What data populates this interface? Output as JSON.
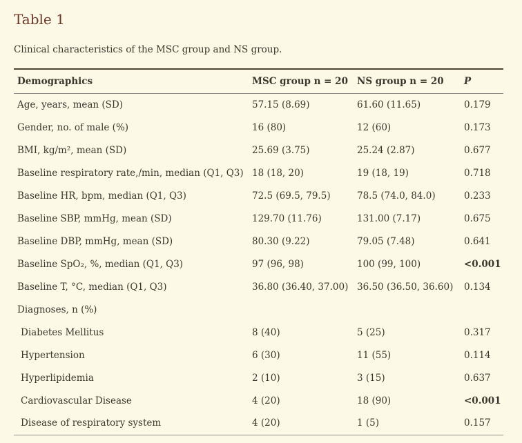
{
  "page": {
    "title": "Table 1",
    "caption": "Clinical characteristics of the MSC group and NS group."
  },
  "colors": {
    "background": "#fdf9e7",
    "title": "#713423",
    "text": "#3a372c",
    "rule_dark": "#4a4336",
    "rule_light": "#908e87"
  },
  "table": {
    "headers": [
      "Demographics",
      "MSC group n = 20",
      "NS group n = 20",
      "P"
    ],
    "rows": [
      {
        "label": "Age, years, mean (SD)",
        "msc": "57.15 (8.69)",
        "ns": "61.60 (11.65)",
        "p": "0.179",
        "bold_p": false,
        "indent": false
      },
      {
        "label": "Gender, no. of male (%)",
        "msc": "16 (80)",
        "ns": "12 (60)",
        "p": "0.173",
        "bold_p": false,
        "indent": false
      },
      {
        "label": "BMI, kg/m², mean (SD)",
        "msc": "25.69 (3.75)",
        "ns": "25.24 (2.87)",
        "p": "0.677",
        "bold_p": false,
        "indent": false
      },
      {
        "label": "Baseline respiratory rate,/min, median (Q1, Q3)",
        "msc": "18 (18, 20)",
        "ns": "19 (18, 19)",
        "p": "0.718",
        "bold_p": false,
        "indent": false
      },
      {
        "label": "Baseline HR, bpm, median (Q1, Q3)",
        "msc": "72.5 (69.5, 79.5)",
        "ns": "78.5 (74.0, 84.0)",
        "p": "0.233",
        "bold_p": false,
        "indent": false
      },
      {
        "label": "Baseline SBP, mmHg, mean (SD)",
        "msc": "129.70 (11.76)",
        "ns": "131.00 (7.17)",
        "p": "0.675",
        "bold_p": false,
        "indent": false
      },
      {
        "label": "Baseline DBP, mmHg, mean (SD)",
        "msc": "80.30 (9.22)",
        "ns": "79.05 (7.48)",
        "p": "0.641",
        "bold_p": false,
        "indent": false
      },
      {
        "label": "Baseline SpO₂, %, median (Q1, Q3)",
        "msc": "97 (96, 98)",
        "ns": "100 (99, 100)",
        "p": "<0.001",
        "bold_p": true,
        "indent": false
      },
      {
        "label": "Baseline T, °C, median (Q1, Q3)",
        "msc": "36.80 (36.40, 37.00)",
        "ns": "36.50 (36.50, 36.60)",
        "p": "0.134",
        "bold_p": false,
        "indent": false
      },
      {
        "label": "Diagnoses, n (%)",
        "msc": "",
        "ns": "",
        "p": "",
        "bold_p": false,
        "indent": false
      },
      {
        "label": "Diabetes Mellitus",
        "msc": "8 (40)",
        "ns": "5 (25)",
        "p": "0.317",
        "bold_p": false,
        "indent": true
      },
      {
        "label": "Hypertension",
        "msc": "6 (30)",
        "ns": "11 (55)",
        "p": "0.114",
        "bold_p": false,
        "indent": true
      },
      {
        "label": "Hyperlipidemia",
        "msc": "2 (10)",
        "ns": "3 (15)",
        "p": "0.637",
        "bold_p": false,
        "indent": true
      },
      {
        "label": "Cardiovascular Disease",
        "msc": "4 (20)",
        "ns": "18 (90)",
        "p": "<0.001",
        "bold_p": true,
        "indent": true
      },
      {
        "label": "Disease of respiratory system",
        "msc": "4 (20)",
        "ns": "1 (5)",
        "p": "0.157",
        "bold_p": false,
        "indent": true
      }
    ]
  }
}
